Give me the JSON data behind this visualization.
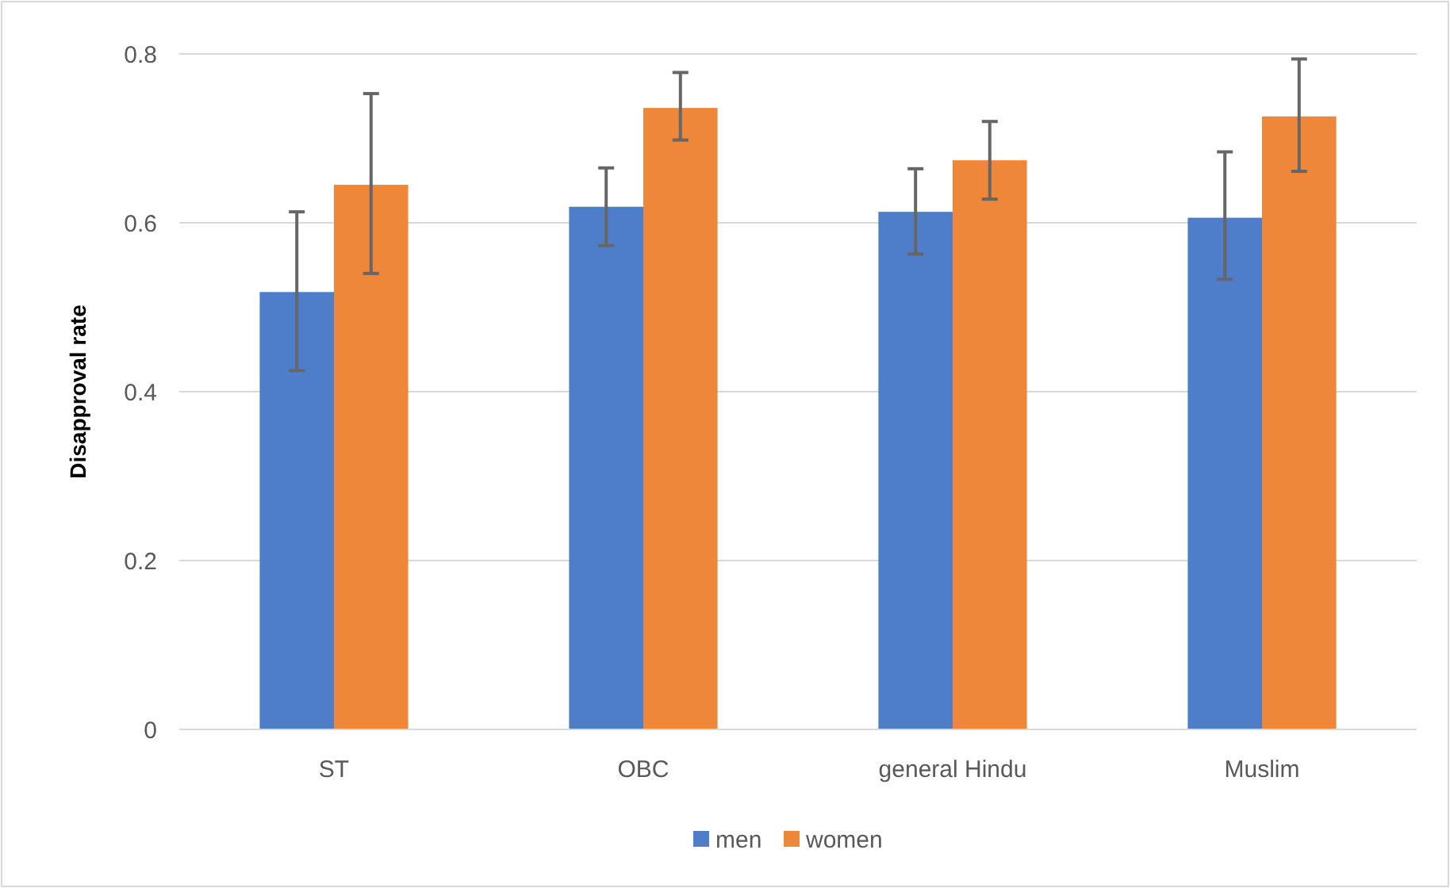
{
  "chart_data": {
    "type": "bar",
    "ylabel": "Disapproval rate",
    "categories": [
      "ST",
      "OBC",
      "general Hindu",
      "Muslim"
    ],
    "series": [
      {
        "name": "men",
        "color": "#4e7dc9",
        "values": [
          0.518,
          0.619,
          0.613,
          0.606
        ],
        "errors": [
          [
            0.425,
            0.613
          ],
          [
            0.573,
            0.665
          ],
          [
            0.563,
            0.664
          ],
          [
            0.533,
            0.684
          ]
        ]
      },
      {
        "name": "women",
        "color": "#ee873a",
        "values": [
          0.645,
          0.736,
          0.674,
          0.726
        ],
        "errors": [
          [
            0.54,
            0.753
          ],
          [
            0.698,
            0.778
          ],
          [
            0.628,
            0.72
          ],
          [
            0.661,
            0.794
          ]
        ]
      }
    ],
    "ylim": [
      0,
      0.8
    ],
    "yticks": [
      {
        "value": 0,
        "label": "0"
      },
      0.2,
      0.4,
      0.6,
      0.8
    ],
    "grid": "y",
    "legend": "bottom"
  }
}
